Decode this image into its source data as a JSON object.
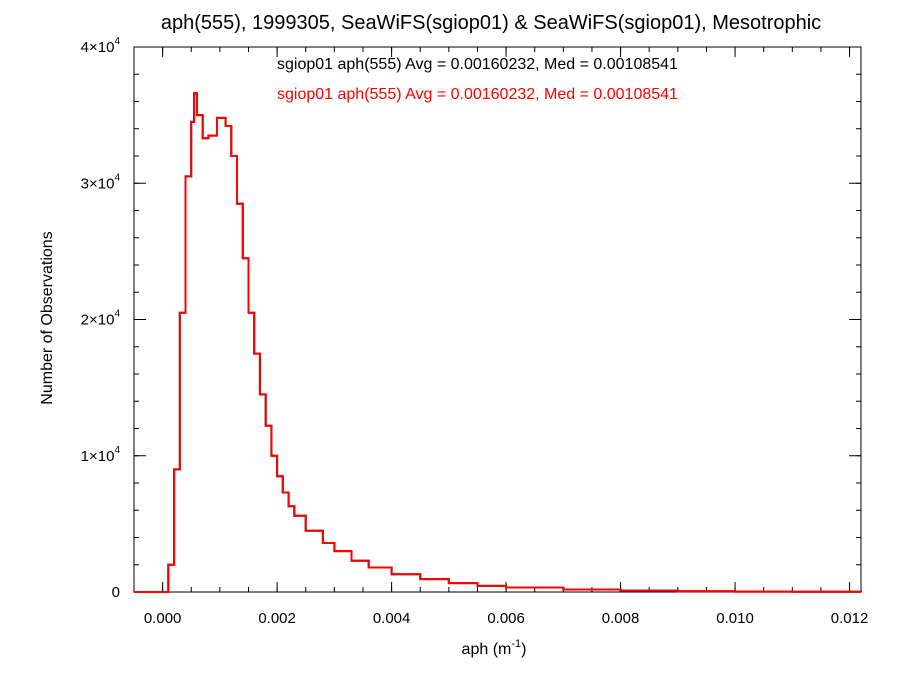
{
  "chart_data": {
    "type": "line",
    "title": "aph(555), 1999305, SeaWiFS(sgiop01) & SeaWiFS(sgiop01), Mesotrophic",
    "xlabel": "aph (m⁻¹)",
    "ylabel": "Number of Observations",
    "xlim": [
      -0.0005,
      0.0122
    ],
    "ylim": [
      0,
      40000
    ],
    "x_ticks": [
      {
        "value": 0.0,
        "label": "0.000"
      },
      {
        "value": 0.002,
        "label": "0.002"
      },
      {
        "value": 0.004,
        "label": "0.004"
      },
      {
        "value": 0.006,
        "label": "0.006"
      },
      {
        "value": 0.008,
        "label": "0.008"
      },
      {
        "value": 0.01,
        "label": "0.010"
      },
      {
        "value": 0.012,
        "label": "0.012"
      }
    ],
    "y_ticks": [
      {
        "value": 0,
        "mantissa": "0",
        "exponent": ""
      },
      {
        "value": 10000,
        "mantissa": "1×10",
        "exponent": "4"
      },
      {
        "value": 20000,
        "mantissa": "2×10",
        "exponent": "4"
      },
      {
        "value": 30000,
        "mantissa": "3×10",
        "exponent": "4"
      },
      {
        "value": 40000,
        "mantissa": "4×10",
        "exponent": "4"
      }
    ],
    "x_minor_step": 0.0005,
    "y_minor_step": 2000,
    "grid": false,
    "legend_position": "top-center",
    "series": [
      {
        "name": "sgiop01 aph(555) Avg = 0.00160232, Med = 0.00108541",
        "color": "#000000",
        "points_x": [
          -0.0005,
          -5e-05,
          0.0001,
          0.0002,
          0.0003,
          0.0004,
          0.0005,
          0.00055,
          0.0006,
          0.0007,
          0.0008,
          0.00095,
          0.0011,
          0.0012,
          0.0013,
          0.0014,
          0.0015,
          0.0016,
          0.0017,
          0.0018,
          0.0019,
          0.002,
          0.0021,
          0.0022,
          0.0023,
          0.0025,
          0.0028,
          0.003,
          0.0033,
          0.0036,
          0.004,
          0.0045,
          0.005,
          0.0055,
          0.006,
          0.007,
          0.008,
          0.009,
          0.01,
          0.011,
          0.0122
        ],
        "points_y": [
          0,
          0,
          2000,
          9000,
          20500,
          30500,
          34500,
          36600,
          35000,
          33300,
          33500,
          34800,
          34200,
          32000,
          28500,
          24500,
          20500,
          17500,
          14500,
          12200,
          10000,
          8500,
          7300,
          6300,
          5600,
          4500,
          3600,
          3000,
          2300,
          1800,
          1300,
          950,
          650,
          450,
          330,
          180,
          100,
          60,
          30,
          15,
          0
        ]
      },
      {
        "name": "sgiop01 aph(555) Avg = 0.00160232, Med = 0.00108541",
        "color": "#ff0000",
        "points_x": [
          -0.0005,
          -5e-05,
          0.0001,
          0.0002,
          0.0003,
          0.0004,
          0.0005,
          0.00055,
          0.0006,
          0.0007,
          0.0008,
          0.00095,
          0.0011,
          0.0012,
          0.0013,
          0.0014,
          0.0015,
          0.0016,
          0.0017,
          0.0018,
          0.0019,
          0.002,
          0.0021,
          0.0022,
          0.0023,
          0.0025,
          0.0028,
          0.003,
          0.0033,
          0.0036,
          0.004,
          0.0045,
          0.005,
          0.0055,
          0.006,
          0.007,
          0.008,
          0.009,
          0.01,
          0.011,
          0.0122
        ],
        "points_y": [
          0,
          0,
          2000,
          9000,
          20500,
          30500,
          34500,
          36600,
          35000,
          33300,
          33500,
          34800,
          34200,
          32000,
          28500,
          24500,
          20500,
          17500,
          14500,
          12200,
          10000,
          8500,
          7300,
          6300,
          5600,
          4500,
          3600,
          3000,
          2300,
          1800,
          1300,
          950,
          650,
          450,
          330,
          180,
          100,
          60,
          30,
          15,
          0
        ]
      }
    ]
  }
}
